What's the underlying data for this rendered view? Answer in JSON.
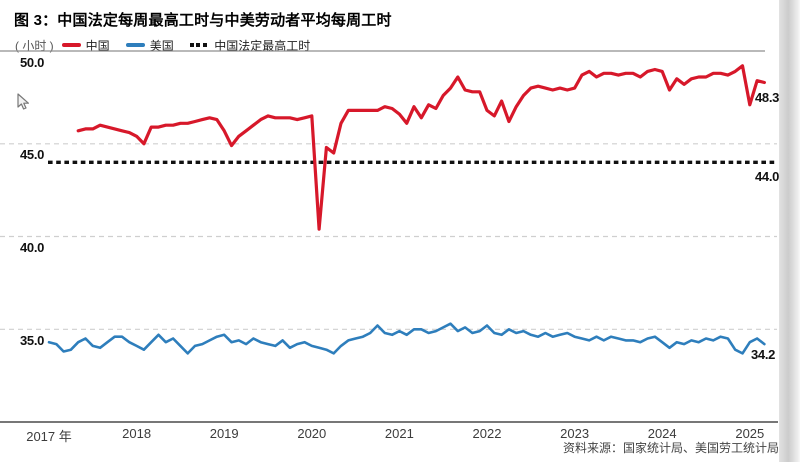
{
  "page": {
    "title": "图 3：中国法定每周最高工时与中美劳动者平均每周工时"
  },
  "chart_data": {
    "type": "line",
    "figure_label": "图 3",
    "title": "中国法定每周最高工时与中美劳动者平均每周工时",
    "unit_label": "( 小时 )",
    "x_tick_labels": [
      "2017 年",
      "2018",
      "2019",
      "2020",
      "2021",
      "2022",
      "2023",
      "2024",
      "2025"
    ],
    "y_tick_labels": [
      "50.0",
      "45.0",
      "40.0",
      "35.0"
    ],
    "y_ticks": [
      50,
      45,
      40,
      35
    ],
    "ylim": [
      33.5,
      50.0
    ],
    "grid": "dashed horizontal gridlines",
    "legend_position": "top",
    "x_axis_type": "monthly time series, Jan 2017 - Mar 2025",
    "reference_line": {
      "label": "中国法定最高工时",
      "value": 44.0,
      "annotation": "44.0",
      "color": "#111111",
      "style": "dotted"
    },
    "series": [
      {
        "name": "中国",
        "color": "#d7182a",
        "start_month": "2017-05",
        "end_annotation": "48.3",
        "values": [
          45.7,
          45.8,
          45.8,
          46.0,
          45.9,
          45.8,
          45.7,
          45.6,
          45.4,
          45.0,
          45.9,
          45.9,
          46.0,
          46.0,
          46.1,
          46.1,
          46.2,
          46.3,
          46.4,
          46.3,
          45.7,
          44.9,
          45.4,
          45.7,
          46.0,
          46.3,
          46.5,
          46.4,
          46.4,
          46.4,
          46.3,
          46.4,
          46.5,
          40.4,
          44.8,
          44.5,
          46.1,
          46.8,
          46.8,
          46.8,
          46.8,
          46.8,
          47.0,
          46.9,
          46.6,
          46.1,
          47.0,
          46.4,
          47.1,
          46.9,
          47.6,
          48.0,
          48.6,
          47.9,
          47.8,
          47.8,
          46.8,
          46.5,
          47.3,
          46.2,
          47.0,
          47.6,
          48.0,
          48.1,
          48.0,
          47.9,
          48.0,
          47.9,
          48.0,
          48.7,
          48.9,
          48.6,
          48.8,
          48.8,
          48.7,
          48.8,
          48.8,
          48.6,
          48.9,
          49.0,
          48.9,
          47.9,
          48.5,
          48.2,
          48.5,
          48.6,
          48.6,
          48.8,
          48.8,
          48.7,
          48.9,
          49.2,
          47.1,
          48.4,
          48.3
        ]
      },
      {
        "name": "美国",
        "color": "#2e7ebc",
        "start_month": "2017-01",
        "end_annotation": "34.2",
        "values": [
          34.3,
          34.2,
          33.8,
          33.9,
          34.3,
          34.5,
          34.1,
          34.0,
          34.3,
          34.6,
          34.6,
          34.3,
          34.1,
          33.9,
          34.3,
          34.7,
          34.3,
          34.5,
          34.1,
          33.7,
          34.1,
          34.2,
          34.4,
          34.6,
          34.7,
          34.3,
          34.4,
          34.2,
          34.5,
          34.3,
          34.2,
          34.1,
          34.4,
          34.0,
          34.2,
          34.3,
          34.1,
          34.0,
          33.9,
          33.7,
          34.1,
          34.4,
          34.5,
          34.6,
          34.8,
          35.2,
          34.8,
          34.7,
          34.9,
          34.7,
          35.0,
          35.0,
          34.8,
          34.9,
          35.1,
          35.3,
          34.9,
          35.1,
          34.8,
          34.9,
          35.2,
          34.8,
          34.7,
          35.0,
          34.8,
          34.9,
          34.7,
          34.6,
          34.8,
          34.6,
          34.7,
          34.8,
          34.6,
          34.5,
          34.4,
          34.6,
          34.4,
          34.6,
          34.5,
          34.4,
          34.4,
          34.3,
          34.5,
          34.6,
          34.3,
          34.0,
          34.3,
          34.2,
          34.4,
          34.3,
          34.5,
          34.4,
          34.6,
          34.5,
          33.9,
          33.7,
          34.3,
          34.5,
          34.2
        ]
      }
    ],
    "source": "资料来源：国家统计局、美国劳工统计局"
  }
}
